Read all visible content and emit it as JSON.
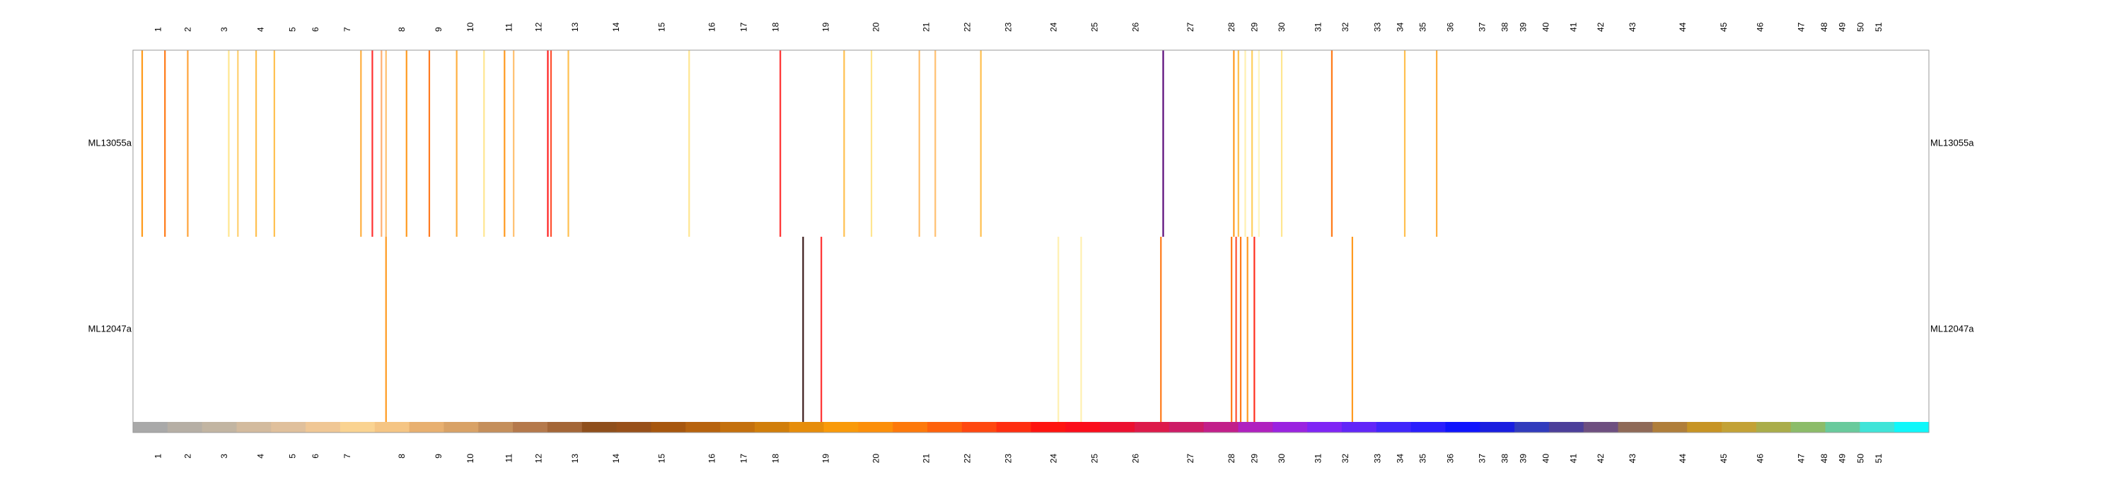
{
  "chart_data": {
    "type": "heatmap",
    "title": "",
    "xlabel": "",
    "ylabel": "",
    "x_range": [
      0,
      51.5
    ],
    "grid": false,
    "legend": "none",
    "columns": [
      "1",
      "2",
      "3",
      "4",
      "5",
      "6",
      "7",
      "8",
      "9",
      "10",
      "11",
      "12",
      "13",
      "14",
      "15",
      "16",
      "17",
      "18",
      "19",
      "20",
      "21",
      "22",
      "23",
      "24",
      "25",
      "26",
      "27",
      "28",
      "29",
      "30",
      "31",
      "32",
      "33",
      "34",
      "35",
      "36",
      "37",
      "38",
      "39",
      "40",
      "41",
      "42",
      "43",
      "44",
      "45",
      "46",
      "47",
      "48",
      "49",
      "50",
      "51"
    ],
    "rows": [
      "ML13055a",
      "ML12047a"
    ],
    "colorbar": [
      "#a9a9a9",
      "#b6afa5",
      "#c2b5a2",
      "#d3bb9e",
      "#e0c09c",
      "#f0c795",
      "#fad391",
      "#f5c584",
      "#e8b070",
      "#d9a266",
      "#c58f5b",
      "#b5794b",
      "#a46637",
      "#8f4f1c",
      "#98501a",
      "#a7570e",
      "#b7630e",
      "#c4700d",
      "#d17e0b",
      "#e68d0b",
      "#f99a0a",
      "#fc8f0a",
      "#fd790b",
      "#fe620c",
      "#ff4810",
      "#ff2e10",
      "#fe1410",
      "#fb0d1a",
      "#ec1030",
      "#dd1a4a",
      "#cd1c66",
      "#c21f8a",
      "#b021bf",
      "#9a23e0",
      "#7f25f5",
      "#6226f8",
      "#4026fb",
      "#2a1efd",
      "#0f14fd",
      "#191ee0",
      "#313bbd",
      "#4c3f9a",
      "#6e4f80",
      "#8f6a58",
      "#b07e3a",
      "#c79424",
      "#c3a236",
      "#aaad4a",
      "#8cbc69",
      "#69ca9c",
      "#3fe4d8",
      "#0ff7fa"
    ],
    "row_lines": [
      [
        {
          "x": 0.2,
          "color": "#ff9a1a"
        },
        {
          "x": 0.7,
          "color": "#ff7a18"
        },
        {
          "x": 1.2,
          "color": "#ffa33a"
        },
        {
          "x": 2.1,
          "color": "#ffe690"
        },
        {
          "x": 2.3,
          "color": "#ffd070"
        },
        {
          "x": 2.7,
          "color": "#ffc050"
        },
        {
          "x": 3.1,
          "color": "#ffc050"
        },
        {
          "x": 5.0,
          "color": "#ffb040"
        },
        {
          "x": 5.25,
          "color": "#ff3030"
        },
        {
          "x": 5.45,
          "color": "#ffb070"
        },
        {
          "x": 5.55,
          "color": "#ffc070"
        },
        {
          "x": 6.0,
          "color": "#ff9a20"
        },
        {
          "x": 6.5,
          "color": "#ff7a20"
        },
        {
          "x": 7.1,
          "color": "#ffb040"
        },
        {
          "x": 7.7,
          "color": "#ffe690"
        },
        {
          "x": 8.15,
          "color": "#ff9a20"
        },
        {
          "x": 8.35,
          "color": "#ffc070"
        },
        {
          "x": 9.1,
          "color": "#ff2020"
        },
        {
          "x": 9.17,
          "color": "#ff5030"
        },
        {
          "x": 9.55,
          "color": "#ffc050"
        },
        {
          "x": 12.2,
          "color": "#ffe690"
        },
        {
          "x": 14.2,
          "color": "#ff3030"
        },
        {
          "x": 15.6,
          "color": "#ffc050"
        },
        {
          "x": 16.2,
          "color": "#ffe690"
        },
        {
          "x": 17.25,
          "color": "#ffc070"
        },
        {
          "x": 17.6,
          "color": "#ffc070"
        },
        {
          "x": 18.6,
          "color": "#ffc050"
        },
        {
          "x": 22.6,
          "color": "#5a0a7a"
        },
        {
          "x": 24.15,
          "color": "#ff9a20"
        },
        {
          "x": 24.25,
          "color": "#ffc050"
        },
        {
          "x": 24.4,
          "color": "#fff0b0"
        },
        {
          "x": 24.55,
          "color": "#ffd060"
        },
        {
          "x": 24.7,
          "color": "#fff5c0"
        },
        {
          "x": 25.2,
          "color": "#ffe690"
        },
        {
          "x": 26.3,
          "color": "#ff7a18"
        },
        {
          "x": 27.9,
          "color": "#ffc050"
        },
        {
          "x": 28.6,
          "color": "#ffb040"
        }
      ],
      [
        {
          "x": 5.55,
          "color": "#ff9a20"
        },
        {
          "x": 14.7,
          "color": "#3a1a1a"
        },
        {
          "x": 15.1,
          "color": "#ff3030"
        },
        {
          "x": 20.3,
          "color": "#fff0b0"
        },
        {
          "x": 20.8,
          "color": "#fff0b0"
        },
        {
          "x": 22.55,
          "color": "#ff7a18"
        },
        {
          "x": 24.1,
          "color": "#ff7a18"
        },
        {
          "x": 24.2,
          "color": "#ff5030"
        },
        {
          "x": 24.3,
          "color": "#ff7a18"
        },
        {
          "x": 24.45,
          "color": "#ff9a20"
        },
        {
          "x": 24.6,
          "color": "#ff3020"
        },
        {
          "x": 26.75,
          "color": "#ff9a20"
        }
      ]
    ]
  }
}
